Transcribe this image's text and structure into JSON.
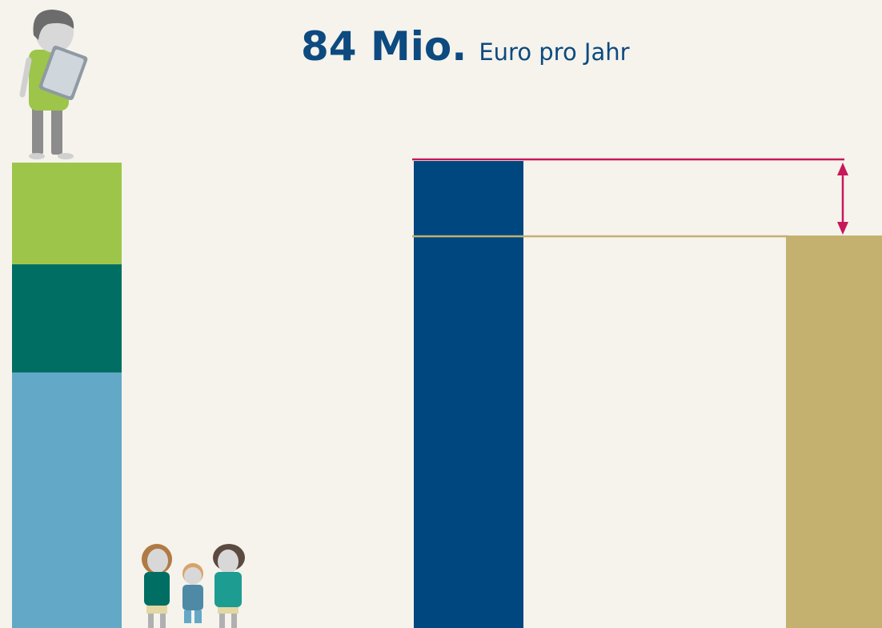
{
  "header": {
    "amount": "84 Mio.",
    "unit": "Euro pro Jahr"
  }
}
